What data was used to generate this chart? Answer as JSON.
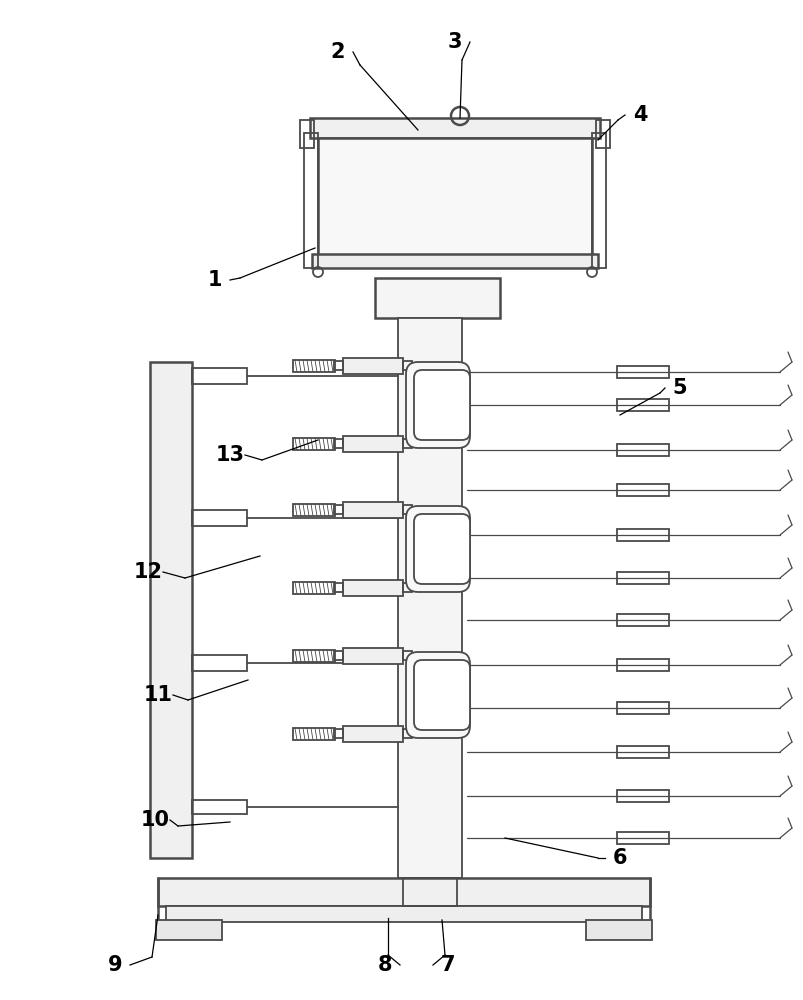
{
  "bg_color": "#ffffff",
  "lc": "#4a4a4a",
  "lw": 1.3,
  "lw2": 1.8,
  "fig_w": 8.04,
  "fig_h": 10.0,
  "dpi": 100
}
